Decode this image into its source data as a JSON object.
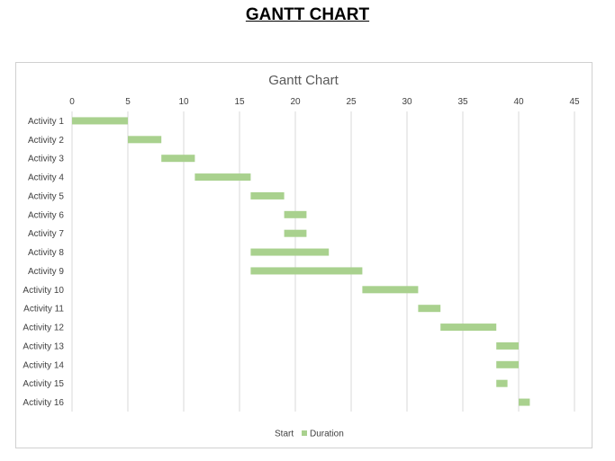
{
  "page": {
    "heading": "GANTT CHART"
  },
  "chart_data": {
    "type": "bar",
    "orientation": "horizontal",
    "stacked": true,
    "title": "Gantt Chart",
    "categories": [
      "Activity 1",
      "Activity 2",
      "Activity 3",
      "Activity 4",
      "Activity 5",
      "Activity 6",
      "Activity 7",
      "Activity 8",
      "Activity 9",
      "Activity 10",
      "Activity 11",
      "Activity 12",
      "Activity 13",
      "Activity 14",
      "Activity 15",
      "Activity 16"
    ],
    "series": [
      {
        "name": "Start",
        "values": [
          0,
          5,
          8,
          11,
          16,
          19,
          19,
          16,
          16,
          26,
          31,
          33,
          38,
          38,
          38,
          40
        ],
        "color": "none"
      },
      {
        "name": "Duration",
        "values": [
          5,
          3,
          3,
          5,
          3,
          2,
          2,
          7,
          10,
          5,
          2,
          5,
          2,
          2,
          1,
          1
        ],
        "color": "#a9d18e"
      }
    ],
    "xlim": [
      0,
      45
    ],
    "xticks": [
      "0",
      "5",
      "10",
      "15",
      "20",
      "25",
      "30",
      "35",
      "40",
      "45"
    ],
    "x_axis_position": "top",
    "grid": true,
    "gridline_color": "#d9d9d9",
    "legend_position": "bottom"
  }
}
